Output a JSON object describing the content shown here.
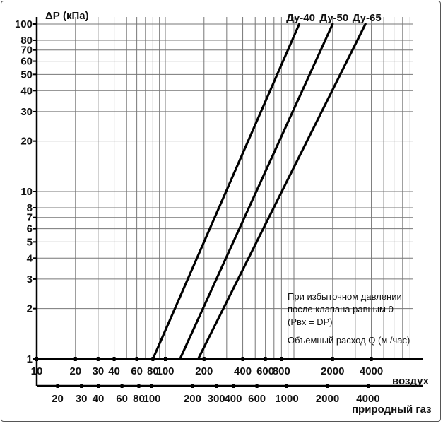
{
  "chart_data": {
    "type": "line",
    "title": "",
    "ylabel": "ΔР (кПа)",
    "yscale": "log",
    "ylim": [
      1,
      100
    ],
    "yticks": [
      1,
      2,
      3,
      4,
      5,
      6,
      7,
      8,
      10,
      20,
      30,
      40,
      50,
      60,
      70,
      80,
      100
    ],
    "xscale": "log",
    "x_axes": [
      {
        "name": "воздух",
        "xlim": [
          10,
          5000
        ],
        "ticks": [
          "10",
          "20",
          "30",
          "40",
          "60",
          "80",
          "100",
          "200",
          "400",
          "600",
          "800",
          "2000",
          "4000"
        ]
      },
      {
        "name": "природный газ",
        "ticks": [
          "20",
          "30",
          "40",
          "60",
          "80",
          "100",
          "200",
          "300",
          "400",
          "600",
          "1000",
          "2000",
          "4000"
        ]
      }
    ],
    "series": [
      {
        "name": "Ду-40",
        "points": [
          [
            80,
            1
          ],
          [
            1100,
            100
          ]
        ]
      },
      {
        "name": "Ду-50",
        "points": [
          [
            130,
            1
          ],
          [
            2000,
            100
          ]
        ]
      },
      {
        "name": "Ду-65",
        "points": [
          [
            180,
            1
          ],
          [
            3600,
            100
          ]
        ]
      }
    ],
    "annotation": {
      "lines": [
        "При избыточном давлении",
        "после клапана равным 0",
        "(Рвх = DP)",
        "Объемный расход Q (м /час)"
      ]
    },
    "grid": true
  }
}
